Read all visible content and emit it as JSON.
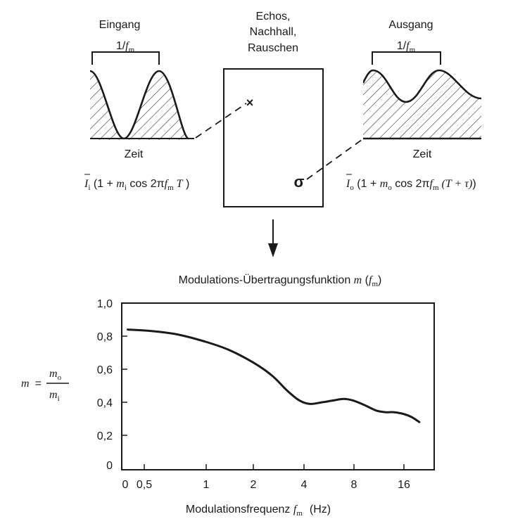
{
  "diagram": {
    "input": {
      "title": "Eingang",
      "period_prefix": "1/",
      "period_var": "f",
      "period_sub": "m",
      "time_label": "Zeit",
      "formula": {
        "I": "I",
        "I_sub": "i",
        "open": " (1 + ",
        "m": "m",
        "m_sub": "i",
        "cos": " cos 2π",
        "f": "f",
        "f_sub": "m",
        "T": " T",
        "close": " )"
      }
    },
    "room": {
      "label_lines": [
        "Echos,",
        "Nachhall,",
        "Rauschen"
      ],
      "source_mark": "×",
      "receiver_mark": "σ"
    },
    "output": {
      "title": "Ausgang",
      "period_prefix": "1/",
      "period_var": "f",
      "period_sub": "m",
      "time_label": "Zeit",
      "formula": {
        "I": "I",
        "I_sub": "o",
        "open": " (1 + ",
        "m": "m",
        "m_sub": "o",
        "cos": " cos 2π",
        "f": "f",
        "f_sub": "m",
        "T": " (T + τ)",
        "close": ")"
      }
    },
    "mtf_equation": {
      "lhs": "m",
      "eq": "=",
      "num": "m",
      "num_sub": "o",
      "den": "m",
      "den_sub": "i"
    }
  },
  "chart_data": {
    "type": "line",
    "title": "Modulations-Übertragungsfunktion m ( f_m)",
    "title_text": "Modulations-Übertragungsfunktion ",
    "title_var": "m",
    "title_paren_open": " (",
    "title_f": "f",
    "title_f_sub": "m",
    "title_paren_close": ")",
    "xlabel_text": "Modulationsfrequenz ",
    "xlabel_var": "f",
    "xlabel_sub": "m",
    "xlabel_unit": "(Hz)",
    "x_ticks": [
      "0",
      "0,5",
      "1",
      "2",
      "4",
      "8",
      "16"
    ],
    "y_ticks": [
      "0",
      "0,2",
      "0,4",
      "0,6",
      "0,8",
      "1,0"
    ],
    "ylim": [
      0,
      1.0
    ],
    "x_scale": "log2",
    "series": [
      {
        "x": [
          0.35,
          0.5,
          0.7,
          1.0,
          1.4,
          2.0,
          2.6,
          3.2,
          3.8,
          4.4,
          5.2,
          6.0,
          7.0,
          8.0,
          9.5,
          11.0,
          12.5,
          14.0,
          16.0,
          18.0,
          20.0
        ],
        "y": [
          0.84,
          0.83,
          0.81,
          0.77,
          0.72,
          0.64,
          0.56,
          0.47,
          0.41,
          0.39,
          0.4,
          0.41,
          0.42,
          0.41,
          0.38,
          0.35,
          0.34,
          0.34,
          0.33,
          0.31,
          0.28
        ]
      }
    ]
  }
}
